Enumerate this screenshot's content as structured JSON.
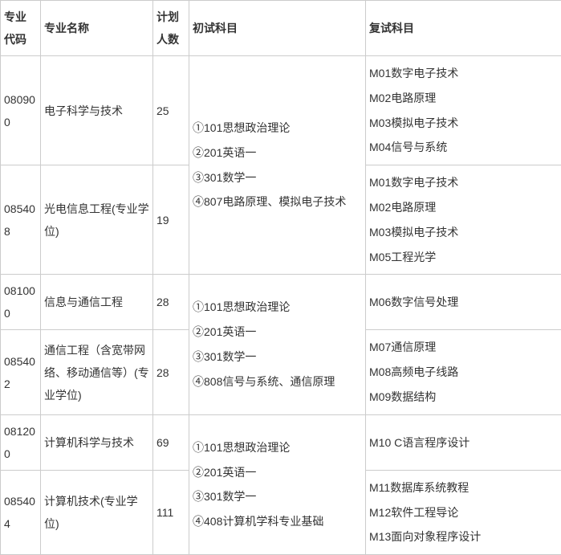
{
  "headers": {
    "code": "专业代码",
    "name": "专业名称",
    "plan": "计划人数",
    "first": "初试科目",
    "retest": "复试科目"
  },
  "majors": [
    {
      "code": "080900",
      "name": "电子科学与技术",
      "plan": "25"
    },
    {
      "code": "085408",
      "name": "光电信息工程(专业学位)",
      "plan": "19"
    },
    {
      "code": "081000",
      "name": "信息与通信工程",
      "plan": "28"
    },
    {
      "code": "085402",
      "name": "通信工程（含宽带网络、移动通信等）(专业学位)",
      "plan": "28"
    },
    {
      "code": "081200",
      "name": "计算机科学与技术",
      "plan": "69"
    },
    {
      "code": "085404",
      "name": "计算机技术(专业学位)",
      "plan": "111"
    }
  ],
  "firstExams": {
    "group1": "①101思想政治理论\n②201英语一\n③301数学一\n④807电路原理、模拟电子技术",
    "group2": "①101思想政治理论\n②201英语一\n③301数学一\n④808信号与系统、通信原理",
    "group3": "①101思想政治理论\n②201英语一\n③301数学一\n④408计算机学科专业基础"
  },
  "retests": {
    "r1": "M01数字电子技术\nM02电路原理\nM03模拟电子技术\nM04信号与系统",
    "r2": "M01数字电子技术\nM02电路原理\nM03模拟电子技术\nM05工程光学",
    "r3": "M06数字信号处理",
    "r4": "M07通信原理\nM08高频电子线路\nM09数据结构",
    "r5": "M10 C语言程序设计",
    "r6": "M11数据库系统教程\nM12软件工程导论\nM13面向对象程序设计"
  },
  "colors": {
    "border": "#cccccc",
    "text": "#333333",
    "background": "#ffffff"
  }
}
